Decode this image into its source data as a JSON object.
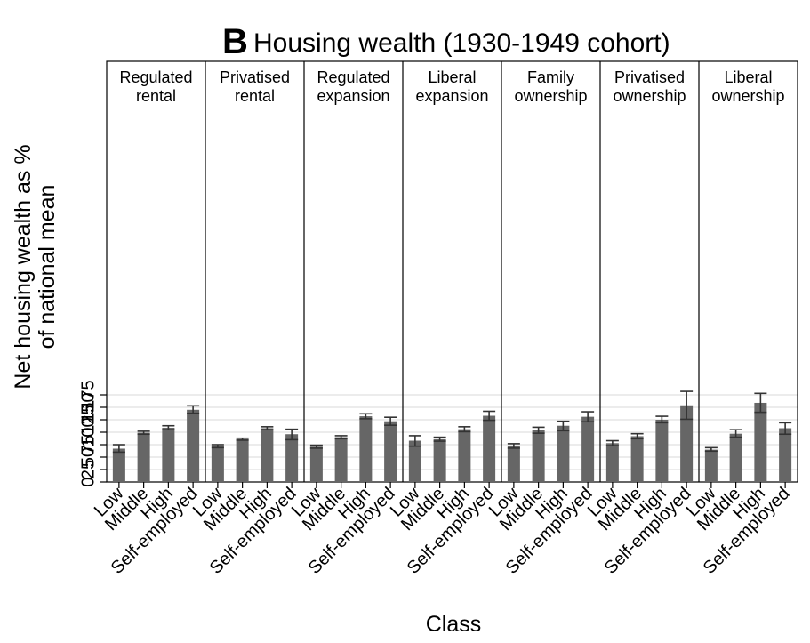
{
  "chart_data": {
    "type": "bar",
    "panel_letter": "B",
    "title": "Housing wealth (1930-1949 cohort)",
    "xlabel": "Class",
    "ylabel_lines": [
      "Net housing wealth as %",
      "of national mean"
    ],
    "ylim": [
      0,
      200
    ],
    "yticks": [
      0,
      25,
      50,
      75,
      100,
      125,
      150,
      175
    ],
    "grid": true,
    "error_bars": true,
    "bar_color": "#666666",
    "categories": [
      "Low",
      "Middle",
      "High",
      "Self-employed"
    ],
    "panels": [
      {
        "label_lines": [
          "Regulated",
          "rental"
        ],
        "values": [
          67,
          99,
          109,
          145
        ],
        "err_low": [
          60,
          96,
          105,
          138
        ],
        "err_high": [
          75,
          102,
          113,
          153
        ]
      },
      {
        "label_lines": [
          "Privatised",
          "rental"
        ],
        "values": [
          72,
          86,
          108,
          96
        ],
        "err_low": [
          69,
          84,
          105,
          85
        ],
        "err_high": [
          75,
          88,
          111,
          106
        ]
      },
      {
        "label_lines": [
          "Regulated",
          "expansion"
        ],
        "values": [
          71,
          90,
          132,
          122
        ],
        "err_low": [
          68,
          87,
          127,
          114
        ],
        "err_high": [
          74,
          93,
          137,
          130
        ]
      },
      {
        "label_lines": [
          "Liberal",
          "expansion"
        ],
        "values": [
          83,
          86,
          106,
          133
        ],
        "err_low": [
          72,
          82,
          101,
          124
        ],
        "err_high": [
          93,
          90,
          111,
          142
        ]
      },
      {
        "label_lines": [
          "Family",
          "ownership"
        ],
        "values": [
          72,
          104,
          113,
          131
        ],
        "err_low": [
          68,
          98,
          103,
          121
        ],
        "err_high": [
          77,
          110,
          122,
          141
        ]
      },
      {
        "label_lines": [
          "Privatised",
          "ownership"
        ],
        "values": [
          78,
          92,
          125,
          154
        ],
        "err_low": [
          73,
          87,
          119,
          126
        ],
        "err_high": [
          83,
          97,
          132,
          182
        ]
      },
      {
        "label_lines": [
          "Liberal",
          "ownership"
        ],
        "values": [
          65,
          97,
          159,
          108
        ],
        "err_low": [
          62,
          90,
          140,
          96
        ],
        "err_high": [
          69,
          105,
          178,
          119
        ]
      }
    ]
  }
}
